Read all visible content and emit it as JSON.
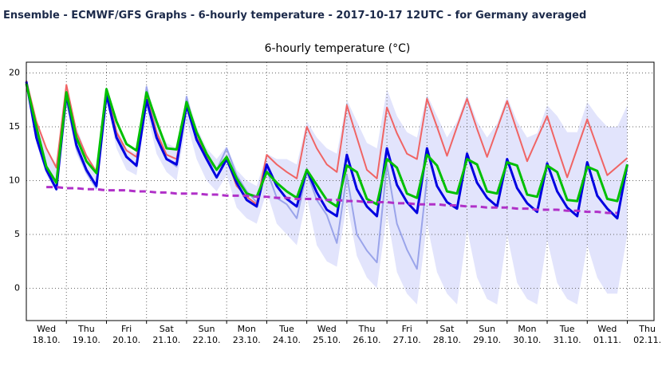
{
  "header": "Ensemble - ECMWF/GFS Graphs - 6-hourly temperature - 2017-10-17 12UTC - for Germany averaged",
  "chart_data": {
    "type": "line",
    "title": "6-hourly temperature (°C)",
    "x": [
      0,
      6,
      12,
      18,
      24,
      30,
      36,
      42,
      48,
      54,
      60,
      66,
      72,
      78,
      84,
      90,
      96,
      102,
      108,
      114,
      120,
      126,
      132,
      138,
      144,
      150,
      156,
      162,
      168,
      174,
      180,
      186,
      192,
      198,
      204,
      210,
      216,
      222,
      228,
      234,
      240,
      246,
      252,
      258,
      264,
      270,
      276,
      282,
      288,
      294,
      300,
      306,
      312,
      318,
      324,
      330,
      336,
      342,
      348,
      354,
      360
    ],
    "xlim": [
      0,
      376
    ],
    "xticks": [
      {
        "value": 12,
        "label": "Wed",
        "date": "18.10."
      },
      {
        "value": 36,
        "label": "Thu",
        "date": "19.10."
      },
      {
        "value": 60,
        "label": "Fri",
        "date": "20.10."
      },
      {
        "value": 84,
        "label": "Sat",
        "date": "21.10."
      },
      {
        "value": 108,
        "label": "Sun",
        "date": "22.10."
      },
      {
        "value": 132,
        "label": "Mon",
        "date": "23.10."
      },
      {
        "value": 156,
        "label": "Tue",
        "date": "24.10."
      },
      {
        "value": 180,
        "label": "Wed",
        "date": "25.10."
      },
      {
        "value": 204,
        "label": "Thu",
        "date": "26.10."
      },
      {
        "value": 228,
        "label": "Fri",
        "date": "27.10."
      },
      {
        "value": 252,
        "label": "Sat",
        "date": "28.10."
      },
      {
        "value": 276,
        "label": "Sun",
        "date": "29.10."
      },
      {
        "value": 300,
        "label": "Mon",
        "date": "30.10."
      },
      {
        "value": 324,
        "label": "Tue",
        "date": "31.10."
      },
      {
        "value": 348,
        "label": "Wed",
        "date": "01.11."
      },
      {
        "value": 372,
        "label": "Thu",
        "date": "02.11."
      }
    ],
    "xgrid": [
      24,
      48,
      72,
      96,
      120,
      144,
      168,
      192,
      216,
      240,
      264,
      288,
      312,
      336,
      360
    ],
    "ylim": [
      -3,
      21
    ],
    "yticks": [
      0,
      5,
      10,
      15,
      20
    ],
    "grid": true,
    "band": {
      "color": "#e2e4fc",
      "upper": [
        19.5,
        15.5,
        13,
        11.5,
        19,
        15,
        12.5,
        11,
        18.8,
        15,
        13,
        12.5,
        19,
        15.5,
        13.5,
        13,
        18,
        15,
        13,
        12,
        13.2,
        11,
        10,
        9.5,
        12.5,
        12,
        12,
        11.5,
        15.5,
        14,
        13,
        12.5,
        17.5,
        15.5,
        13.5,
        13,
        18.5,
        16,
        14.5,
        14,
        18,
        16,
        14,
        15.5,
        18,
        15.5,
        14,
        15.3,
        17.8,
        15.5,
        14,
        14.4,
        17,
        16,
        14.5,
        14.5,
        17.3,
        16,
        15,
        15,
        17
      ],
      "lower": [
        19,
        13.5,
        10.5,
        9,
        17,
        12.5,
        10.5,
        9,
        17.5,
        13,
        11,
        10.5,
        16.5,
        12.5,
        10.8,
        10,
        15.5,
        12,
        10,
        9,
        10.5,
        7.5,
        6.5,
        6,
        9,
        6,
        5,
        4,
        8.5,
        4,
        2.5,
        2,
        8,
        3,
        1,
        0,
        7,
        1.5,
        -0.5,
        -1.5,
        6,
        1.5,
        -0.5,
        -1.5,
        5.5,
        1,
        -1,
        -1.5,
        5,
        0.5,
        -1,
        -1.5,
        4.5,
        0.5,
        -1,
        -1.5,
        4,
        1,
        -0.5,
        -0.5,
        5
      ]
    },
    "series": [
      {
        "color": "#9aa4ea",
        "width": 2,
        "values": [
          19,
          14.5,
          11,
          9.3,
          17.5,
          13,
          10.8,
          9.3,
          18.5,
          14.5,
          12.3,
          11.3,
          18.7,
          14.5,
          12,
          11.3,
          17.8,
          14,
          12,
          11,
          13,
          10.5,
          9,
          8,
          11,
          8.4,
          7.8,
          6.5,
          10.8,
          8.2,
          6.8,
          4.2,
          10.5,
          5,
          3.5,
          2.4,
          11.5,
          6,
          3.6,
          1.8,
          10.2,
          null,
          null,
          null,
          null,
          null,
          null,
          null,
          null,
          null,
          null,
          null,
          null,
          null,
          null,
          null,
          null,
          null,
          null,
          null,
          null
        ]
      },
      {
        "color": "#f06464",
        "width": 2,
        "values": [
          19.3,
          15.5,
          13,
          11.2,
          18.9,
          14.5,
          12.3,
          10.8,
          18.3,
          14.5,
          12.8,
          12.2,
          17.8,
          14.5,
          12.4,
          12,
          17.3,
          14,
          12.3,
          11,
          12,
          9.5,
          8.5,
          7.8,
          12.4,
          11.5,
          10.8,
          10.2,
          15,
          13,
          11.5,
          10.8,
          17,
          14,
          11,
          10.2,
          16.8,
          14.4,
          12.5,
          12,
          17.6,
          15,
          12.3,
          15,
          17.6,
          14.8,
          12.2,
          14.8,
          17.4,
          14.6,
          11.8,
          13.9,
          16,
          13.1,
          10.3,
          13,
          15.7,
          13.1,
          10.5,
          11.3,
          12.1
        ]
      },
      {
        "color": "#0000e0",
        "width": 3,
        "values": [
          19.2,
          14,
          11,
          9.2,
          18,
          13.3,
          11,
          9.5,
          18,
          14,
          12.2,
          11.4,
          17.5,
          14,
          12,
          11.5,
          17,
          13.8,
          12,
          10.3,
          12,
          9.8,
          8.2,
          7.6,
          11.5,
          9.5,
          8.3,
          7.6,
          11,
          8.9,
          7.3,
          6.7,
          12.4,
          9.2,
          7.6,
          6.7,
          13,
          9.6,
          8,
          7,
          13,
          9.5,
          8,
          7.4,
          12.5,
          9.8,
          8.4,
          7.6,
          12,
          9.3,
          7.9,
          7.1,
          11.6,
          9,
          7.5,
          6.7,
          11.7,
          8.6,
          7.4,
          6.5,
          11.5
        ]
      },
      {
        "color": "#00c000",
        "width": 3,
        "values": [
          19,
          15,
          11.3,
          9.8,
          18.2,
          14,
          11.8,
          10.7,
          18.5,
          15.5,
          13.4,
          12.8,
          18.2,
          15.5,
          13,
          12.9,
          17.3,
          14.5,
          12.5,
          11,
          12.2,
          10.2,
          8.8,
          8.5,
          10.8,
          9.8,
          9,
          8.4,
          11,
          9.6,
          8.2,
          7.6,
          11.4,
          10.8,
          8.3,
          7.8,
          12,
          11.2,
          8.8,
          8.4,
          12.4,
          11.4,
          9,
          8.8,
          12,
          11.5,
          9,
          8.8,
          11.7,
          11.4,
          8.7,
          8.5,
          11.4,
          10.8,
          8.2,
          8.1,
          11.3,
          10.9,
          8.3,
          8.1,
          11.5
        ]
      },
      {
        "color": "#b030c8",
        "width": 3,
        "dash": true,
        "values": [
          null,
          null,
          9.4,
          9.4,
          9.3,
          9.3,
          9.2,
          9.2,
          9.1,
          9.1,
          9.1,
          9.0,
          9.0,
          8.9,
          8.9,
          8.8,
          8.8,
          8.8,
          8.7,
          8.7,
          8.6,
          8.6,
          8.6,
          8.5,
          8.5,
          8.4,
          8.4,
          8.3,
          8.3,
          8.3,
          8.2,
          8.2,
          8.1,
          8.1,
          8.0,
          8.0,
          8.0,
          7.9,
          7.9,
          7.8,
          7.8,
          7.8,
          7.7,
          7.7,
          7.6,
          7.6,
          7.5,
          7.5,
          7.5,
          7.4,
          7.4,
          7.3,
          7.3,
          7.3,
          7.2,
          7.2,
          7.1,
          7.1,
          7.0,
          7.0,
          null
        ]
      }
    ]
  }
}
